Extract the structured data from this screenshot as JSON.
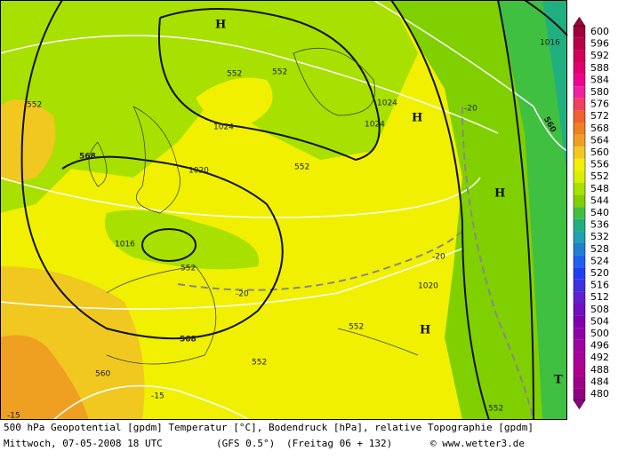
{
  "map": {
    "labels": [
      "H",
      "H",
      "H",
      "H",
      "T",
      "1016",
      "1024",
      "1024",
      "1024",
      "1020",
      "1016",
      "1020",
      "552",
      "552",
      "552",
      "552",
      "552",
      "552",
      "552",
      "552",
      "568",
      "568",
      "560",
      "560",
      "-20",
      "-20",
      "-20",
      "-15",
      "-15"
    ]
  },
  "colorbar": {
    "values": [
      600,
      596,
      592,
      588,
      584,
      580,
      576,
      572,
      568,
      564,
      560,
      556,
      552,
      548,
      544,
      540,
      536,
      532,
      528,
      524,
      520,
      516,
      512,
      508,
      504,
      500,
      496,
      492,
      488,
      484,
      480
    ],
    "colors": [
      "#a0003c",
      "#b80048",
      "#d00058",
      "#e00070",
      "#f00090",
      "#f020a0",
      "#f04060",
      "#f06030",
      "#f08020",
      "#f0a020",
      "#f0c820",
      "#f0f000",
      "#d8f000",
      "#a8e000",
      "#80d000",
      "#40c040",
      "#20b080",
      "#20a0b0",
      "#2080d0",
      "#2060f0",
      "#2040f0",
      "#4030e0",
      "#6020d0",
      "#7010c0",
      "#8000b0",
      "#9000a8",
      "#a000a0",
      "#a80098",
      "#b00090",
      "#a00088",
      "#900080"
    ]
  },
  "footer": {
    "line1": "500 hPa Geopotential [gpdm] Temperatur [°C], Bodendruck [hPa], relative Topographie [gpdm]",
    "date": "Mittwoch, 07-05-2008  18 UTC",
    "model": "(GFS 0.5°)",
    "forecast": "(Freitag 06 + 132)",
    "credit": "© www.wetter3.de"
  }
}
